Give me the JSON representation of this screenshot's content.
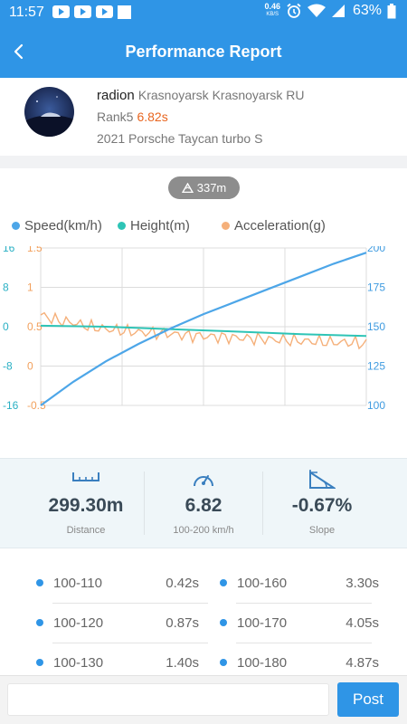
{
  "status_bar": {
    "time": "11:57",
    "net_speed_value": "0.46",
    "net_speed_unit": "KB/S",
    "battery": "63%"
  },
  "header": {
    "title": "Performance Report",
    "back_icon": "back-arrow-icon"
  },
  "profile": {
    "username": "radion",
    "location": "Krasnoyarsk Krasnoyarsk RU",
    "rank_label": "Rank5",
    "rank_time": "6.82s",
    "car": "2021 Porsche Taycan turbo S"
  },
  "distance_badge": "337m",
  "legend": [
    {
      "name": "Speed(km/h)",
      "color": "#4da6e8"
    },
    {
      "name": "Height(m)",
      "color": "#2ec4b6"
    },
    {
      "name": "Acceleration(g)",
      "color": "#f5b07a"
    }
  ],
  "chart_data": {
    "type": "line",
    "axes": {
      "height_ticks": [
        "16",
        "8",
        "0",
        "-8",
        "-16"
      ],
      "height_range": [
        -16,
        16
      ],
      "accel_ticks": [
        "1.5",
        "1",
        "0.5",
        "0",
        "-0.5"
      ],
      "accel_range": [
        -0.5,
        1.5
      ],
      "speed_ticks": [
        "200",
        "175",
        "150",
        "125",
        "100"
      ],
      "speed_range": [
        100,
        200
      ]
    },
    "grid": true,
    "series": [
      {
        "name": "Speed(km/h)",
        "color": "#4da6e8",
        "x": [
          0,
          0.1,
          0.2,
          0.3,
          0.4,
          0.5,
          0.6,
          0.7,
          0.8,
          0.9,
          1.0
        ],
        "values": [
          100,
          115,
          128,
          139,
          149,
          158,
          166,
          174,
          182,
          190,
          197
        ]
      },
      {
        "name": "Height(m)",
        "color": "#2ec4b6",
        "x": [
          0,
          0.2,
          0.4,
          0.6,
          0.8,
          1.0
        ],
        "values": [
          0.2,
          0.0,
          -0.5,
          -1.0,
          -1.5,
          -1.9
        ]
      },
      {
        "name": "Acceleration(g)",
        "color": "#f5b07a",
        "x": [
          0,
          0.05,
          0.1,
          0.15,
          0.2,
          0.25,
          0.3,
          0.35,
          0.4,
          0.45,
          0.5,
          0.55,
          0.6,
          0.65,
          0.7,
          0.75,
          0.8,
          0.85,
          0.9,
          0.95,
          1.0
        ],
        "values": [
          0.65,
          0.58,
          0.55,
          0.5,
          0.47,
          0.45,
          0.43,
          0.42,
          0.41,
          0.39,
          0.38,
          0.37,
          0.36,
          0.35,
          0.34,
          0.33,
          0.32,
          0.31,
          0.3,
          0.3,
          0.28
        ]
      }
    ]
  },
  "stats": [
    {
      "value": "299.30m",
      "label": "Distance",
      "icon": "ruler-icon"
    },
    {
      "value": "6.82",
      "label": "100-200 km/h",
      "icon": "speedometer-icon"
    },
    {
      "value": "-0.67%",
      "label": "Slope",
      "icon": "slope-icon"
    }
  ],
  "results": [
    {
      "range": "100-110",
      "time": "0.42s"
    },
    {
      "range": "100-160",
      "time": "3.30s"
    },
    {
      "range": "100-120",
      "time": "0.87s"
    },
    {
      "range": "100-170",
      "time": "4.05s"
    },
    {
      "range": "100-130",
      "time": "1.40s"
    },
    {
      "range": "100-180",
      "time": "4.87s"
    }
  ],
  "comment": {
    "value": "",
    "placeholder": ""
  },
  "post_label": "Post"
}
